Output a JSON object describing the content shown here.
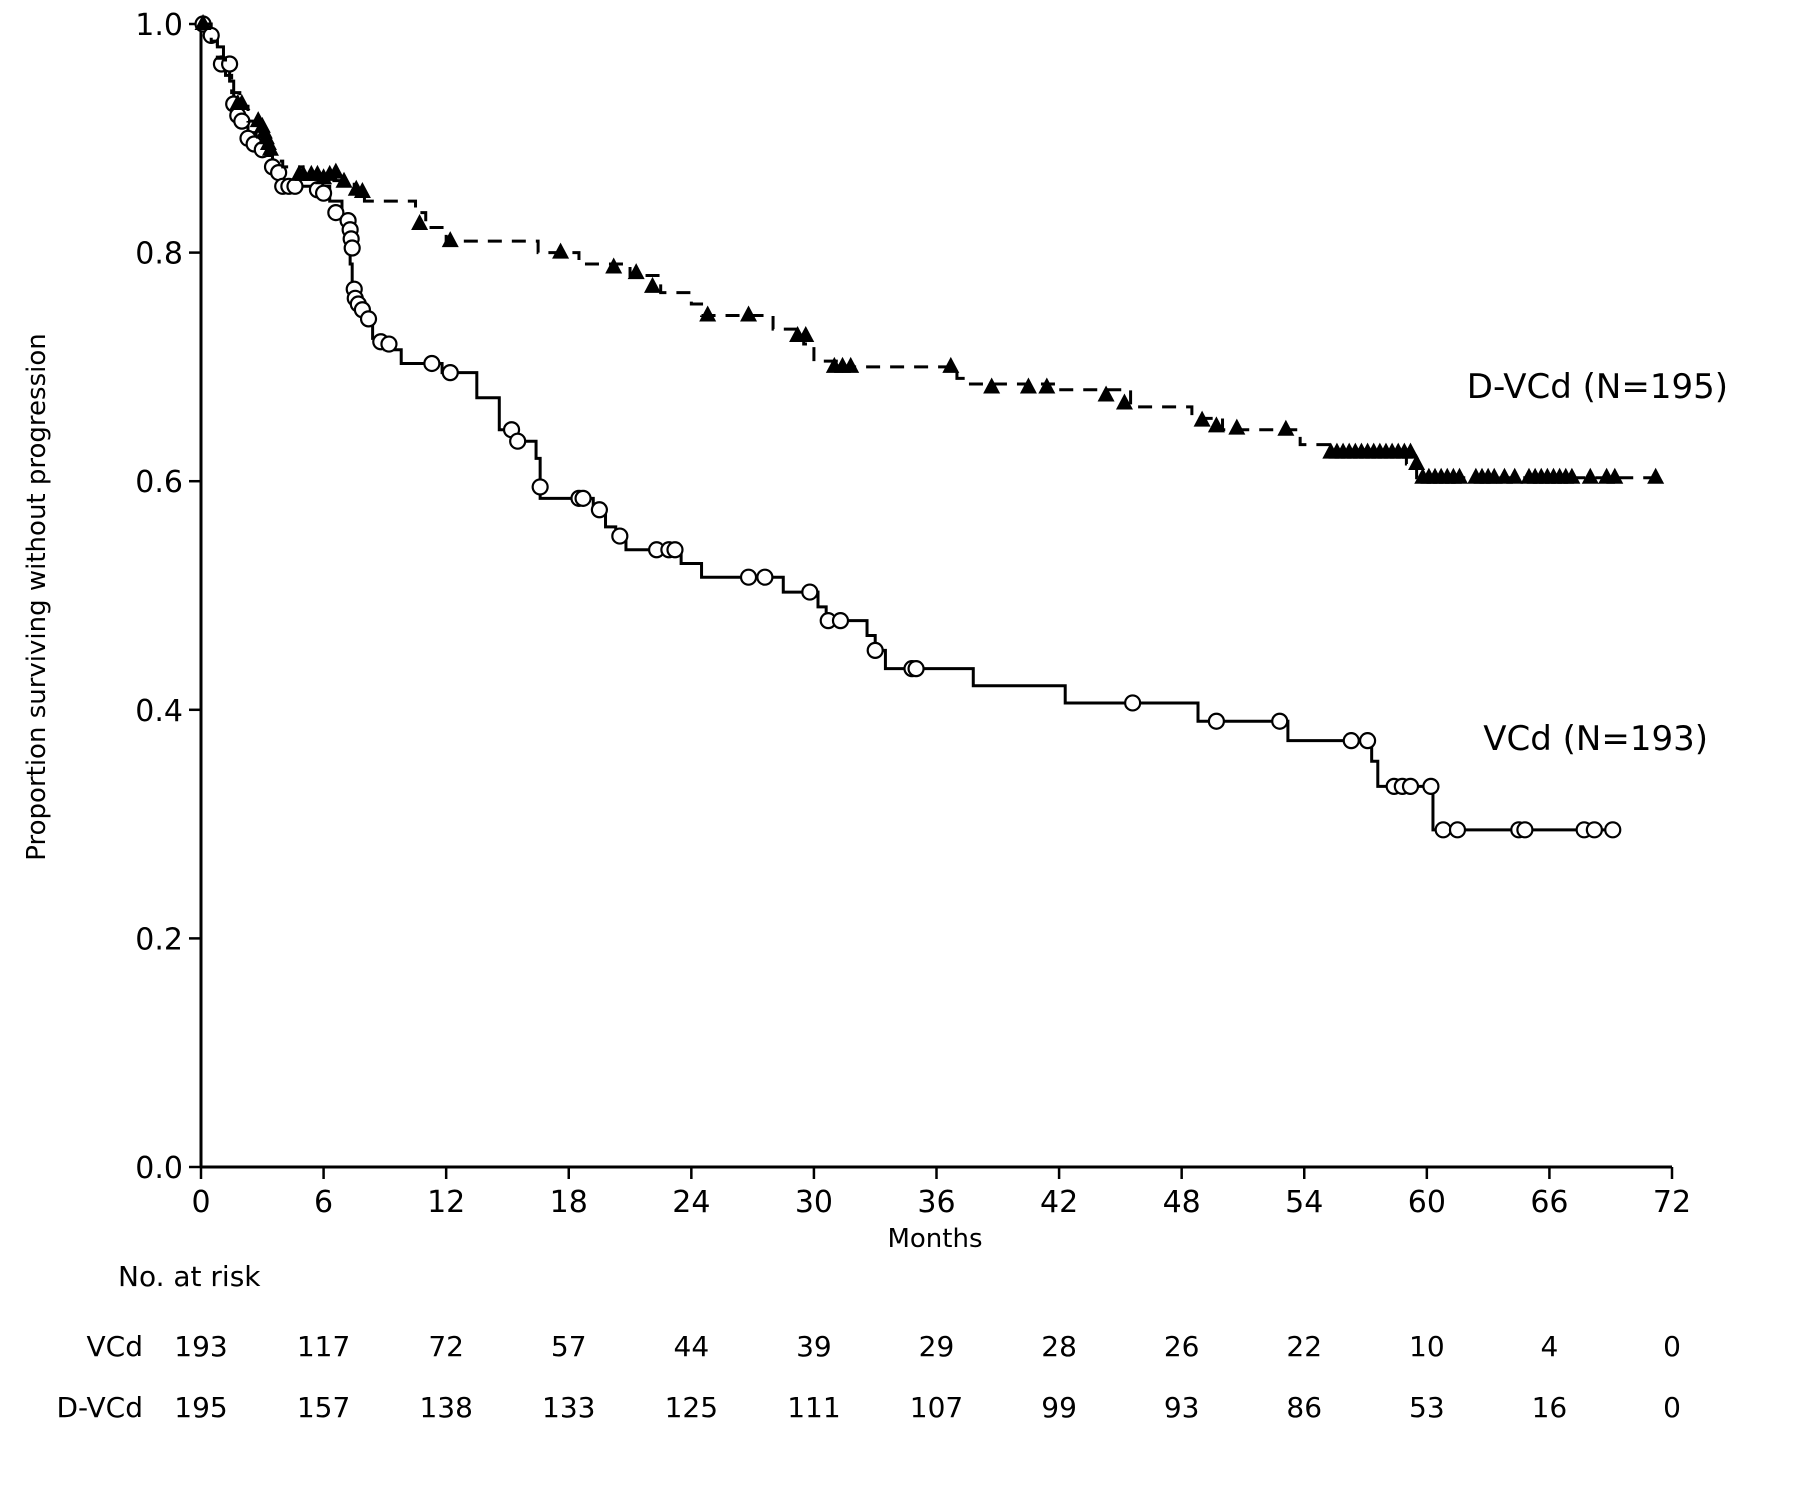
{
  "chart_data": {
    "type": "line",
    "subtype": "kaplan-meier",
    "title": "",
    "xlabel": "Months",
    "ylabel": "Proportion surviving without progression",
    "xlim": [
      0,
      72
    ],
    "ylim": [
      0,
      1
    ],
    "x_ticks": [
      0,
      6,
      12,
      18,
      24,
      30,
      36,
      42,
      48,
      54,
      60,
      66,
      72
    ],
    "y_ticks": [
      "0.0",
      "0.2",
      "0.4",
      "0.6",
      "0.8",
      "1.0"
    ],
    "grid": false,
    "legend": "none",
    "series": [
      {
        "name": "VCd (N=193)",
        "line_style": "solid",
        "marker": "open-circle",
        "color": "#000000",
        "steps": [
          [
            0,
            1.0
          ],
          [
            0.4,
            0.99
          ],
          [
            0.8,
            0.98
          ],
          [
            1.1,
            0.965
          ],
          [
            1.4,
            0.95
          ],
          [
            1.6,
            0.93
          ],
          [
            1.9,
            0.915
          ],
          [
            2.3,
            0.905
          ],
          [
            2.7,
            0.895
          ],
          [
            3.1,
            0.885
          ],
          [
            3.5,
            0.875
          ],
          [
            3.9,
            0.858
          ],
          [
            5.5,
            0.858
          ],
          [
            6.3,
            0.845
          ],
          [
            6.9,
            0.83
          ],
          [
            7.1,
            0.81
          ],
          [
            7.3,
            0.79
          ],
          [
            7.4,
            0.77
          ],
          [
            7.6,
            0.755
          ],
          [
            7.9,
            0.74
          ],
          [
            8.4,
            0.725
          ],
          [
            9.0,
            0.715
          ],
          [
            9.8,
            0.703
          ],
          [
            11.8,
            0.695
          ],
          [
            13.5,
            0.673
          ],
          [
            14.6,
            0.645
          ],
          [
            15.4,
            0.635
          ],
          [
            16.4,
            0.62
          ],
          [
            16.6,
            0.585
          ],
          [
            19.2,
            0.575
          ],
          [
            19.8,
            0.56
          ],
          [
            20.3,
            0.553
          ],
          [
            20.8,
            0.54
          ],
          [
            23.5,
            0.528
          ],
          [
            24.5,
            0.516
          ],
          [
            28.5,
            0.503
          ],
          [
            30.2,
            0.49
          ],
          [
            30.6,
            0.478
          ],
          [
            32.6,
            0.465
          ],
          [
            33.0,
            0.452
          ],
          [
            33.5,
            0.436
          ],
          [
            37.8,
            0.421
          ],
          [
            42.3,
            0.406
          ],
          [
            48.8,
            0.39
          ],
          [
            53.2,
            0.373
          ],
          [
            57.3,
            0.355
          ],
          [
            57.6,
            0.333
          ],
          [
            60.3,
            0.295
          ],
          [
            69.0,
            0.295
          ]
        ],
        "censored": [
          [
            0.1,
            1.0
          ],
          [
            0.5,
            0.99
          ],
          [
            1.0,
            0.965
          ],
          [
            1.4,
            0.965
          ],
          [
            1.6,
            0.93
          ],
          [
            1.8,
            0.92
          ],
          [
            2.0,
            0.915
          ],
          [
            2.3,
            0.9
          ],
          [
            2.6,
            0.895
          ],
          [
            3.0,
            0.89
          ],
          [
            3.5,
            0.875
          ],
          [
            3.8,
            0.87
          ],
          [
            4.0,
            0.858
          ],
          [
            4.3,
            0.858
          ],
          [
            4.6,
            0.858
          ],
          [
            5.7,
            0.855
          ],
          [
            6.0,
            0.852
          ],
          [
            6.6,
            0.835
          ],
          [
            7.2,
            0.828
          ],
          [
            7.3,
            0.82
          ],
          [
            7.35,
            0.812
          ],
          [
            7.4,
            0.804
          ],
          [
            7.5,
            0.768
          ],
          [
            7.55,
            0.76
          ],
          [
            7.7,
            0.755
          ],
          [
            7.9,
            0.75
          ],
          [
            8.2,
            0.742
          ],
          [
            8.8,
            0.722
          ],
          [
            9.2,
            0.72
          ],
          [
            11.3,
            0.703
          ],
          [
            12.2,
            0.695
          ],
          [
            15.2,
            0.645
          ],
          [
            15.5,
            0.635
          ],
          [
            16.6,
            0.595
          ],
          [
            18.5,
            0.585
          ],
          [
            18.7,
            0.585
          ],
          [
            19.5,
            0.575
          ],
          [
            20.5,
            0.552
          ],
          [
            22.3,
            0.54
          ],
          [
            22.9,
            0.54
          ],
          [
            23.2,
            0.54
          ],
          [
            26.8,
            0.516
          ],
          [
            27.6,
            0.516
          ],
          [
            29.8,
            0.503
          ],
          [
            30.7,
            0.478
          ],
          [
            31.3,
            0.478
          ],
          [
            33.0,
            0.452
          ],
          [
            34.8,
            0.436
          ],
          [
            35.0,
            0.436
          ],
          [
            45.6,
            0.406
          ],
          [
            49.7,
            0.39
          ],
          [
            52.8,
            0.39
          ],
          [
            56.3,
            0.373
          ],
          [
            57.1,
            0.373
          ],
          [
            58.4,
            0.333
          ],
          [
            58.8,
            0.333
          ],
          [
            59.2,
            0.333
          ],
          [
            60.2,
            0.333
          ],
          [
            60.8,
            0.295
          ],
          [
            61.5,
            0.295
          ],
          [
            64.5,
            0.295
          ],
          [
            64.8,
            0.295
          ],
          [
            67.7,
            0.295
          ],
          [
            68.2,
            0.295
          ],
          [
            69.1,
            0.295
          ]
        ]
      },
      {
        "name": "D-VCd (N=195)",
        "line_style": "dashed",
        "marker": "filled-triangle",
        "color": "#000000",
        "steps": [
          [
            0,
            1.0
          ],
          [
            0.5,
            0.985
          ],
          [
            0.8,
            0.97
          ],
          [
            1.2,
            0.955
          ],
          [
            1.5,
            0.94
          ],
          [
            1.9,
            0.928
          ],
          [
            2.3,
            0.915
          ],
          [
            2.7,
            0.905
          ],
          [
            3.1,
            0.893
          ],
          [
            3.5,
            0.88
          ],
          [
            4.0,
            0.875
          ],
          [
            5.0,
            0.868
          ],
          [
            6.3,
            0.863
          ],
          [
            7.5,
            0.855
          ],
          [
            8.0,
            0.845
          ],
          [
            10.5,
            0.835
          ],
          [
            11.0,
            0.822
          ],
          [
            12.0,
            0.81
          ],
          [
            16.5,
            0.8
          ],
          [
            18.5,
            0.79
          ],
          [
            21.0,
            0.78
          ],
          [
            22.5,
            0.765
          ],
          [
            24.0,
            0.755
          ],
          [
            24.5,
            0.745
          ],
          [
            28.0,
            0.733
          ],
          [
            29.5,
            0.72
          ],
          [
            30.0,
            0.705
          ],
          [
            31.2,
            0.7
          ],
          [
            37.0,
            0.69
          ],
          [
            37.5,
            0.685
          ],
          [
            42.0,
            0.68
          ],
          [
            45.5,
            0.665
          ],
          [
            48.5,
            0.655
          ],
          [
            50.0,
            0.645
          ],
          [
            53.8,
            0.632
          ],
          [
            55.5,
            0.625
          ],
          [
            59.0,
            0.615
          ],
          [
            59.5,
            0.603
          ],
          [
            71.5,
            0.603
          ]
        ],
        "censored": [
          [
            0.1,
            1.0
          ],
          [
            1.8,
            0.93
          ],
          [
            2.0,
            0.93
          ],
          [
            2.8,
            0.915
          ],
          [
            3.0,
            0.91
          ],
          [
            3.1,
            0.905
          ],
          [
            3.2,
            0.9
          ],
          [
            3.3,
            0.895
          ],
          [
            3.4,
            0.89
          ],
          [
            4.8,
            0.868
          ],
          [
            5.0,
            0.868
          ],
          [
            5.4,
            0.868
          ],
          [
            5.7,
            0.868
          ],
          [
            6.0,
            0.865
          ],
          [
            6.3,
            0.868
          ],
          [
            6.6,
            0.87
          ],
          [
            7.0,
            0.862
          ],
          [
            7.6,
            0.855
          ],
          [
            7.9,
            0.853
          ],
          [
            10.7,
            0.825
          ],
          [
            12.2,
            0.81
          ],
          [
            17.6,
            0.8
          ],
          [
            20.2,
            0.787
          ],
          [
            21.3,
            0.782
          ],
          [
            22.1,
            0.77
          ],
          [
            24.8,
            0.745
          ],
          [
            26.8,
            0.745
          ],
          [
            29.2,
            0.727
          ],
          [
            29.6,
            0.727
          ],
          [
            31.0,
            0.7
          ],
          [
            31.4,
            0.7
          ],
          [
            31.8,
            0.7
          ],
          [
            36.7,
            0.7
          ],
          [
            38.7,
            0.682
          ],
          [
            40.5,
            0.682
          ],
          [
            41.4,
            0.682
          ],
          [
            44.3,
            0.675
          ],
          [
            45.2,
            0.668
          ],
          [
            49.0,
            0.653
          ],
          [
            49.7,
            0.648
          ],
          [
            50.7,
            0.646
          ],
          [
            53.1,
            0.645
          ],
          [
            55.3,
            0.625
          ],
          [
            55.6,
            0.625
          ],
          [
            55.9,
            0.625
          ],
          [
            56.2,
            0.625
          ],
          [
            56.5,
            0.625
          ],
          [
            56.8,
            0.625
          ],
          [
            57.1,
            0.625
          ],
          [
            57.4,
            0.625
          ],
          [
            57.7,
            0.625
          ],
          [
            58.0,
            0.625
          ],
          [
            58.3,
            0.625
          ],
          [
            58.6,
            0.625
          ],
          [
            58.9,
            0.625
          ],
          [
            59.2,
            0.625
          ],
          [
            59.5,
            0.615
          ],
          [
            59.8,
            0.603
          ],
          [
            60.1,
            0.603
          ],
          [
            60.4,
            0.603
          ],
          [
            60.7,
            0.603
          ],
          [
            61.0,
            0.603
          ],
          [
            61.3,
            0.603
          ],
          [
            61.6,
            0.603
          ],
          [
            62.4,
            0.603
          ],
          [
            62.7,
            0.603
          ],
          [
            63.0,
            0.603
          ],
          [
            63.3,
            0.603
          ],
          [
            63.8,
            0.603
          ],
          [
            64.3,
            0.603
          ],
          [
            65.0,
            0.603
          ],
          [
            65.3,
            0.603
          ],
          [
            65.6,
            0.603
          ],
          [
            65.9,
            0.603
          ],
          [
            66.2,
            0.603
          ],
          [
            66.5,
            0.603
          ],
          [
            66.8,
            0.603
          ],
          [
            67.1,
            0.603
          ],
          [
            68.0,
            0.603
          ],
          [
            68.8,
            0.603
          ],
          [
            69.2,
            0.603
          ],
          [
            71.2,
            0.603
          ]
        ]
      }
    ],
    "series_labels": [
      "D-VCd (N=195)",
      "VCd (N=193)"
    ],
    "risk_table": {
      "title": "No. at risk",
      "times": [
        0,
        6,
        12,
        18,
        24,
        30,
        36,
        42,
        48,
        54,
        60,
        66,
        72
      ],
      "rows": [
        {
          "label": "VCd",
          "values": [
            "193",
            "117",
            "72",
            "57",
            "44",
            "39",
            "29",
            "28",
            "26",
            "22",
            "10",
            "4",
            "0"
          ]
        },
        {
          "label": "D-VCd",
          "values": [
            "195",
            "157",
            "138",
            "133",
            "125",
            "111",
            "107",
            "99",
            "93",
            "86",
            "53",
            "16",
            "0"
          ]
        }
      ]
    }
  }
}
